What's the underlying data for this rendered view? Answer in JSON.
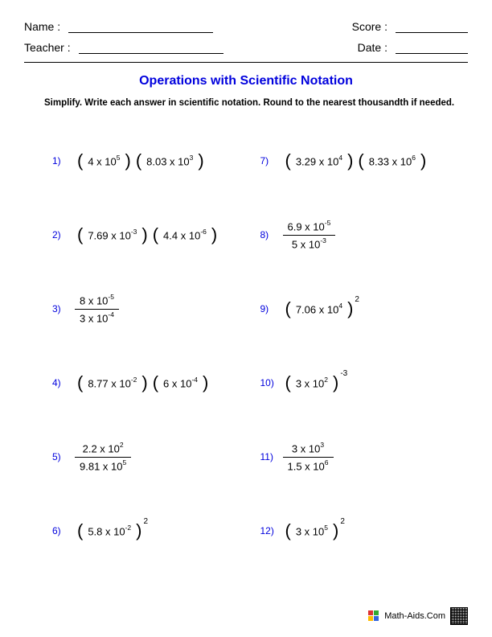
{
  "header": {
    "name_label": "Name :",
    "teacher_label": "Teacher :",
    "score_label": "Score :",
    "date_label": "Date :"
  },
  "title": "Operations with Scientific Notation",
  "instructions": "Simplify. Write each answer in scientific notation. Round to the nearest thousandth if needed.",
  "problems_left": [
    {
      "num": "1)",
      "type": "product",
      "a_coef": "4",
      "a_exp": "5",
      "b_coef": "8.03",
      "b_exp": "3"
    },
    {
      "num": "2)",
      "type": "product",
      "a_coef": "7.69",
      "a_exp": "-3",
      "b_coef": "4.4",
      "b_exp": "-6"
    },
    {
      "num": "3)",
      "type": "fraction",
      "a_coef": "8",
      "a_exp": "-5",
      "b_coef": "3",
      "b_exp": "-4"
    },
    {
      "num": "4)",
      "type": "product",
      "a_coef": "8.77",
      "a_exp": "-2",
      "b_coef": "6",
      "b_exp": "-4"
    },
    {
      "num": "5)",
      "type": "fraction",
      "a_coef": "2.2",
      "a_exp": "2",
      "b_coef": "9.81",
      "b_exp": "5"
    },
    {
      "num": "6)",
      "type": "power",
      "a_coef": "5.8",
      "a_exp": "-2",
      "outer_exp": "2"
    }
  ],
  "problems_right": [
    {
      "num": "7)",
      "type": "product",
      "a_coef": "3.29",
      "a_exp": "4",
      "b_coef": "8.33",
      "b_exp": "6"
    },
    {
      "num": "8)",
      "type": "fraction",
      "a_coef": "6.9",
      "a_exp": "-5",
      "b_coef": "5",
      "b_exp": "-3"
    },
    {
      "num": "9)",
      "type": "power",
      "a_coef": "7.06",
      "a_exp": "4",
      "outer_exp": "2"
    },
    {
      "num": "10)",
      "type": "power",
      "a_coef": "3",
      "a_exp": "2",
      "outer_exp": "-3"
    },
    {
      "num": "11)",
      "type": "fraction",
      "a_coef": "3",
      "a_exp": "3",
      "b_coef": "1.5",
      "b_exp": "6"
    },
    {
      "num": "12)",
      "type": "power",
      "a_coef": "3",
      "a_exp": "5",
      "outer_exp": "2"
    }
  ],
  "footer": {
    "site": "Math-Aids.Com"
  },
  "colors": {
    "accent": "#0000dd",
    "text": "#000000",
    "background": "#ffffff"
  },
  "typography": {
    "title_fontsize": 16,
    "body_fontsize": 13,
    "label_fontsize": 14
  }
}
